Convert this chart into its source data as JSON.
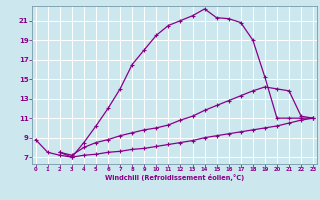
{
  "xlabel": "Windchill (Refroidissement éolien,°C)",
  "background_color": "#cce8ee",
  "grid_color": "#aacccc",
  "line_color": "#880088",
  "x_ticks": [
    0,
    1,
    2,
    3,
    4,
    5,
    6,
    7,
    8,
    9,
    10,
    11,
    12,
    13,
    14,
    15,
    16,
    17,
    18,
    19,
    20,
    21,
    22,
    23
  ],
  "y_ticks": [
    7,
    9,
    11,
    13,
    15,
    17,
    19,
    21
  ],
  "xlim": [
    -0.3,
    23.3
  ],
  "ylim": [
    6.3,
    22.5
  ],
  "curve1_x": [
    0,
    1,
    2,
    3,
    4,
    5,
    6,
    7,
    8,
    9,
    10,
    11,
    12,
    13,
    14,
    15,
    16,
    17,
    18,
    19,
    20,
    21,
    22,
    23
  ],
  "curve1_y": [
    8.8,
    7.5,
    7.2,
    7.0,
    8.5,
    10.2,
    12.0,
    14.0,
    16.5,
    18.0,
    19.5,
    20.5,
    21.0,
    21.5,
    22.2,
    21.3,
    21.2,
    20.8,
    19.0,
    15.2,
    11.0,
    11.0,
    11.0,
    11.0
  ],
  "curve2_x": [
    2,
    3,
    4,
    5,
    6,
    7,
    8,
    9,
    10,
    11,
    12,
    13,
    14,
    15,
    16,
    17,
    18,
    19,
    20,
    21,
    22,
    23
  ],
  "curve2_y": [
    7.5,
    7.2,
    8.0,
    8.5,
    8.8,
    9.2,
    9.5,
    9.8,
    10.0,
    10.3,
    10.8,
    11.2,
    11.8,
    12.3,
    12.8,
    13.3,
    13.8,
    14.2,
    14.0,
    13.8,
    11.2,
    11.0
  ],
  "curve3_x": [
    2,
    3,
    4,
    5,
    6,
    7,
    8,
    9,
    10,
    11,
    12,
    13,
    14,
    15,
    16,
    17,
    18,
    19,
    20,
    21,
    22,
    23
  ],
  "curve3_y": [
    7.5,
    7.0,
    7.2,
    7.3,
    7.5,
    7.6,
    7.8,
    7.9,
    8.1,
    8.3,
    8.5,
    8.7,
    9.0,
    9.2,
    9.4,
    9.6,
    9.8,
    10.0,
    10.2,
    10.5,
    10.8,
    11.0
  ]
}
